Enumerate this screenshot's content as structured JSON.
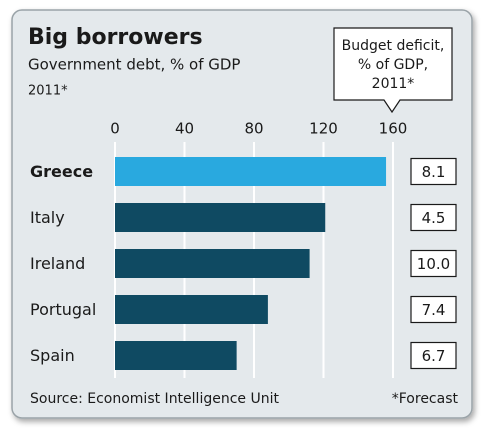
{
  "chart_data": {
    "type": "bar",
    "orientation": "horizontal",
    "title": "Big borrowers",
    "subtitle": "Government debt, % of GDP",
    "period": "2011*",
    "categories": [
      "Greece",
      "Italy",
      "Ireland",
      "Portugal",
      "Spain"
    ],
    "values": [
      156,
      121,
      112,
      88,
      70
    ],
    "color": "#0f4a62",
    "highlight": "Greece",
    "highlight_color": "#29a9df",
    "xlim": [
      0,
      160
    ],
    "xticks": [
      0,
      40,
      80,
      120,
      160
    ],
    "grid": true,
    "deficit": {
      "title": [
        "Budget deficit,",
        "% of GDP,",
        "2011*"
      ],
      "values": [
        8.1,
        4.5,
        10,
        7.4,
        6.7
      ],
      "value_labels": [
        "8.1",
        "4.5",
        "10.0",
        "7.4",
        "6.7"
      ]
    },
    "source": "Source: Economist Intelligence Unit",
    "note": "*Forecast"
  }
}
